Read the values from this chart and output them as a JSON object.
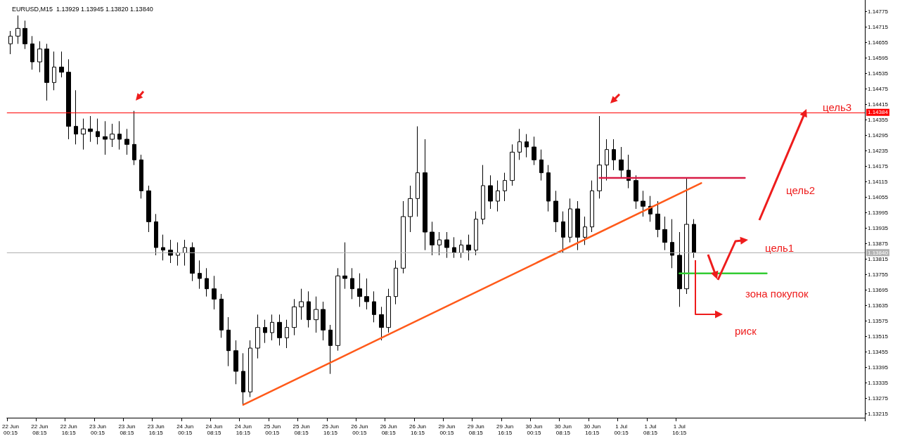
{
  "chart_data": {
    "type": "candlestick",
    "title": "EURUSD,M15  1.13929 1.13945 1.13820 1.13840",
    "color": "#000000",
    "grid": false,
    "marker": "none",
    "categories": [
      "22 Jun 00:15",
      null,
      null,
      null,
      "22 Jun 08:15",
      null,
      null,
      null,
      "22 Jun 16:15",
      null,
      null,
      null,
      "23 Jun 00:15",
      null,
      null,
      null,
      "23 Jun 08:15",
      null,
      null,
      null,
      "23 Jun 16:15",
      null,
      null,
      null,
      "24 Jun 00:15",
      null,
      null,
      null,
      "24 Jun 08:15",
      null,
      null,
      null,
      "24 Jun 16:15",
      null,
      null,
      null,
      "25 Jun 00:15",
      null,
      null,
      null,
      "25 Jun 08:15",
      null,
      null,
      null,
      "25 Jun 16:15",
      null,
      null,
      null,
      "26 Jun 00:15",
      null,
      null,
      null,
      "26 Jun 08:15",
      null,
      null,
      null,
      "26 Jun 16:15",
      null,
      null,
      null,
      "29 Jun 00:15",
      null,
      null,
      null,
      "29 Jun 08:15",
      null,
      null,
      null,
      "29 Jun 16:15",
      null,
      null,
      null,
      "30 Jun 00:15",
      null,
      null,
      null,
      "30 Jun 08:15",
      null,
      null,
      null,
      "30 Jun 16:15",
      null,
      null,
      null,
      "1 Jul 00:15",
      null,
      null,
      null,
      "1 Jul 08:15",
      null,
      null,
      null,
      "1 Jul 16:15",
      null,
      null,
      null,
      null,
      null,
      null,
      null,
      null,
      null,
      null,
      null,
      null,
      null,
      null,
      null,
      null,
      null,
      null,
      null,
      null,
      null,
      null,
      null,
      null,
      null
    ],
    "ohlc": [
      [
        1.1465,
        1.147,
        1.1461,
        1.1468
      ],
      [
        1.1468,
        1.1476,
        1.1465,
        1.1471
      ],
      [
        1.1471,
        1.1474,
        1.1463,
        1.1465
      ],
      [
        1.1465,
        1.1468,
        1.1455,
        1.1458
      ],
      [
        1.1458,
        1.1466,
        1.1454,
        1.1463
      ],
      [
        1.1463,
        1.1465,
        1.1443,
        1.145
      ],
      [
        1.145,
        1.1462,
        1.1447,
        1.1456
      ],
      [
        1.1456,
        1.1462,
        1.1452,
        1.1454
      ],
      [
        1.1454,
        1.1459,
        1.1428,
        1.1433
      ],
      [
        1.1433,
        1.1447,
        1.1426,
        1.143
      ],
      [
        1.143,
        1.1436,
        1.1424,
        1.1432
      ],
      [
        1.1432,
        1.1437,
        1.1427,
        1.1431
      ],
      [
        1.1431,
        1.1436,
        1.1426,
        1.1429
      ],
      [
        1.1429,
        1.1435,
        1.1422,
        1.1428
      ],
      [
        1.1428,
        1.1434,
        1.1425,
        1.143
      ],
      [
        1.143,
        1.1435,
        1.1424,
        1.1428
      ],
      [
        1.1428,
        1.1432,
        1.1422,
        1.1426
      ],
      [
        1.1426,
        1.1439,
        1.1418,
        1.142
      ],
      [
        1.142,
        1.1422,
        1.1405,
        1.1408
      ],
      [
        1.1408,
        1.141,
        1.1392,
        1.1396
      ],
      [
        1.1396,
        1.1399,
        1.1383,
        1.1386
      ],
      [
        1.1386,
        1.1391,
        1.1381,
        1.1385
      ],
      [
        1.1385,
        1.1389,
        1.138,
        1.1383
      ],
      [
        1.1383,
        1.1388,
        1.1379,
        1.1384
      ],
      [
        1.1384,
        1.1389,
        1.1379,
        1.1386
      ],
      [
        1.1386,
        1.1388,
        1.1373,
        1.1376
      ],
      [
        1.1376,
        1.1381,
        1.137,
        1.1374
      ],
      [
        1.1374,
        1.1378,
        1.1367,
        1.137
      ],
      [
        1.137,
        1.1375,
        1.1362,
        1.1366
      ],
      [
        1.1366,
        1.1368,
        1.1351,
        1.1354
      ],
      [
        1.1354,
        1.1359,
        1.134,
        1.1346
      ],
      [
        1.1346,
        1.135,
        1.1333,
        1.1338
      ],
      [
        1.1338,
        1.1345,
        1.1325,
        1.133
      ],
      [
        1.133,
        1.135,
        1.1328,
        1.1347
      ],
      [
        1.1347,
        1.136,
        1.1343,
        1.1355
      ],
      [
        1.1355,
        1.1358,
        1.1349,
        1.1353
      ],
      [
        1.1353,
        1.136,
        1.135,
        1.1357
      ],
      [
        1.1357,
        1.136,
        1.1348,
        1.1351
      ],
      [
        1.1351,
        1.1358,
        1.1347,
        1.1355
      ],
      [
        1.1355,
        1.1366,
        1.1352,
        1.1363
      ],
      [
        1.1363,
        1.137,
        1.1358,
        1.1365
      ],
      [
        1.1365,
        1.1369,
        1.1355,
        1.1358
      ],
      [
        1.1358,
        1.1367,
        1.1353,
        1.1362
      ],
      [
        1.1362,
        1.1365,
        1.135,
        1.1354
      ],
      [
        1.1354,
        1.1356,
        1.1337,
        1.1348
      ],
      [
        1.1348,
        1.1378,
        1.1346,
        1.1375
      ],
      [
        1.1375,
        1.1388,
        1.137,
        1.1374
      ],
      [
        1.1374,
        1.1378,
        1.1366,
        1.137
      ],
      [
        1.137,
        1.1376,
        1.1363,
        1.1367
      ],
      [
        1.1367,
        1.1374,
        1.1362,
        1.1365
      ],
      [
        1.1365,
        1.1369,
        1.1357,
        1.136
      ],
      [
        1.136,
        1.1363,
        1.135,
        1.1355
      ],
      [
        1.1355,
        1.137,
        1.1353,
        1.1367
      ],
      [
        1.1367,
        1.1381,
        1.1364,
        1.1378
      ],
      [
        1.1378,
        1.1404,
        1.1376,
        1.1398
      ],
      [
        1.1398,
        1.141,
        1.1392,
        1.1405
      ],
      [
        1.1405,
        1.1433,
        1.1398,
        1.1415
      ],
      [
        1.1415,
        1.1428,
        1.1385,
        1.1392
      ],
      [
        1.1392,
        1.1396,
        1.1383,
        1.1387
      ],
      [
        1.1387,
        1.1392,
        1.1383,
        1.1389
      ],
      [
        1.1389,
        1.1392,
        1.1382,
        1.1386
      ],
      [
        1.1386,
        1.139,
        1.1382,
        1.1384
      ],
      [
        1.1384,
        1.1389,
        1.1382,
        1.1387
      ],
      [
        1.1387,
        1.1391,
        1.1381,
        1.1385
      ],
      [
        1.1385,
        1.14,
        1.1383,
        1.1397
      ],
      [
        1.1397,
        1.1418,
        1.1395,
        1.141
      ],
      [
        1.141,
        1.1414,
        1.1401,
        1.1404
      ],
      [
        1.1404,
        1.1412,
        1.14,
        1.1408
      ],
      [
        1.1408,
        1.1415,
        1.1404,
        1.1412
      ],
      [
        1.1412,
        1.1426,
        1.141,
        1.1423
      ],
      [
        1.1423,
        1.1432,
        1.142,
        1.1427
      ],
      [
        1.1427,
        1.143,
        1.1421,
        1.1425
      ],
      [
        1.1425,
        1.1429,
        1.1418,
        1.142
      ],
      [
        1.142,
        1.1424,
        1.1412,
        1.1415
      ],
      [
        1.1415,
        1.1418,
        1.14,
        1.1404
      ],
      [
        1.1404,
        1.1408,
        1.1392,
        1.1396
      ],
      [
        1.1396,
        1.14,
        1.1384,
        1.139
      ],
      [
        1.139,
        1.1405,
        1.1388,
        1.1401
      ],
      [
        1.1401,
        1.1404,
        1.1385,
        1.139
      ],
      [
        1.139,
        1.1398,
        1.1387,
        1.1394
      ],
      [
        1.1394,
        1.1412,
        1.1392,
        1.1408
      ],
      [
        1.1408,
        1.1437,
        1.1405,
        1.1418
      ],
      [
        1.1418,
        1.1428,
        1.1412,
        1.1424
      ],
      [
        1.1424,
        1.1428,
        1.1416,
        1.142
      ],
      [
        1.142,
        1.1425,
        1.1413,
        1.1416
      ],
      [
        1.1416,
        1.1422,
        1.1409,
        1.1412
      ],
      [
        1.1412,
        1.1414,
        1.1401,
        1.1404
      ],
      [
        1.1404,
        1.1408,
        1.1398,
        1.1402
      ],
      [
        1.1402,
        1.1406,
        1.1396,
        1.1399
      ],
      [
        1.1399,
        1.1404,
        1.139,
        1.1393
      ],
      [
        1.1393,
        1.1398,
        1.1385,
        1.1388
      ],
      [
        1.1388,
        1.1397,
        1.1378,
        1.1383
      ],
      [
        1.1383,
        1.1392,
        1.1363,
        1.137
      ],
      [
        1.137,
        1.1413,
        1.1368,
        1.1395
      ],
      [
        1.1395,
        1.1397,
        1.1382,
        1.1384
      ],
      null,
      null,
      null,
      null,
      null,
      null,
      null,
      null,
      null,
      null,
      null,
      null,
      null,
      null,
      null,
      null,
      null,
      null,
      null,
      null,
      null,
      null,
      null
    ],
    "series": [
      {
        "type": "line",
        "color": "#ff5a1a",
        "values": [
          null,
          null,
          null,
          null,
          null,
          null,
          null,
          null,
          null,
          null,
          null,
          null,
          null,
          null,
          null,
          null,
          null,
          null,
          null,
          null,
          null,
          null,
          null,
          null,
          null,
          null,
          null,
          null,
          null,
          null,
          null,
          null,
          1.1325,
          null,
          null,
          null,
          null,
          null,
          null,
          null,
          null,
          null,
          null,
          null,
          null,
          null,
          null,
          null,
          null,
          null,
          null,
          null,
          null,
          null,
          null,
          null,
          null,
          null,
          null,
          null,
          null,
          null,
          null,
          null,
          null,
          null,
          null,
          null,
          null,
          null,
          null,
          null,
          null,
          null,
          null,
          null,
          null,
          null,
          null,
          null,
          null,
          null,
          null,
          null,
          null,
          null,
          null,
          null,
          null,
          null,
          null,
          null,
          null,
          null,
          null,
          1.1411,
          null,
          null,
          null,
          null,
          null,
          null,
          null,
          null,
          null,
          null,
          null,
          null,
          null,
          null,
          null,
          null,
          null,
          null,
          null,
          null,
          null,
          null
        ]
      },
      {
        "type": "line",
        "color": "#d81b45",
        "values": [
          null,
          null,
          null,
          null,
          null,
          null,
          null,
          null,
          null,
          null,
          null,
          null,
          null,
          null,
          null,
          null,
          null,
          null,
          null,
          null,
          null,
          null,
          null,
          null,
          null,
          null,
          null,
          null,
          null,
          null,
          null,
          null,
          null,
          null,
          null,
          null,
          null,
          null,
          null,
          null,
          null,
          null,
          null,
          null,
          null,
          null,
          null,
          null,
          null,
          null,
          null,
          null,
          null,
          null,
          null,
          null,
          null,
          null,
          null,
          null,
          null,
          null,
          null,
          null,
          null,
          null,
          null,
          null,
          null,
          null,
          null,
          null,
          null,
          null,
          null,
          null,
          null,
          null,
          null,
          null,
          null,
          1.1413,
          null,
          null,
          null,
          null,
          null,
          null,
          null,
          null,
          null,
          null,
          null,
          null,
          null,
          null,
          null,
          null,
          null,
          null,
          null,
          1.1413,
          null,
          null,
          null,
          null,
          null,
          null,
          null,
          null,
          null,
          null,
          null,
          null,
          null,
          null,
          null,
          null
        ]
      },
      {
        "type": "line",
        "color": "#33cc33",
        "values": [
          null,
          null,
          null,
          null,
          null,
          null,
          null,
          null,
          null,
          null,
          null,
          null,
          null,
          null,
          null,
          null,
          null,
          null,
          null,
          null,
          null,
          null,
          null,
          null,
          null,
          null,
          null,
          null,
          null,
          null,
          null,
          null,
          null,
          null,
          null,
          null,
          null,
          null,
          null,
          null,
          null,
          null,
          null,
          null,
          null,
          null,
          null,
          null,
          null,
          null,
          null,
          null,
          null,
          null,
          null,
          null,
          null,
          null,
          null,
          null,
          null,
          null,
          null,
          null,
          null,
          null,
          null,
          null,
          null,
          null,
          null,
          null,
          null,
          null,
          null,
          null,
          null,
          null,
          null,
          null,
          null,
          null,
          null,
          null,
          null,
          null,
          null,
          null,
          null,
          null,
          null,
          null,
          1.1376,
          null,
          null,
          null,
          null,
          null,
          null,
          null,
          null,
          null,
          null,
          null,
          1.1376,
          null,
          null,
          null,
          null,
          null,
          null,
          null,
          null,
          null,
          null,
          null,
          null,
          null
        ]
      }
    ],
    "ylim": [
      1.132,
      1.1482
    ],
    "yticks": [
      1.13215,
      1.13275,
      1.13335,
      1.13395,
      1.13455,
      1.13515,
      1.13575,
      1.13635,
      1.13695,
      1.13755,
      1.13815,
      1.13875,
      1.13935,
      1.13995,
      1.14055,
      1.14115,
      1.14175,
      1.14235,
      1.14295,
      1.14355,
      1.14415,
      1.14475,
      1.14535,
      1.14595,
      1.14655,
      1.14715,
      1.14775
    ],
    "ref_lines": [
      {
        "axis": "y",
        "value": 1.14384,
        "label": "1.14384",
        "color": "#ff0000"
      },
      {
        "axis": "y",
        "value": 1.1384,
        "label": "1.13840",
        "color": "#b0b0b0"
      }
    ],
    "annotations": [
      "цель3",
      "цель2",
      "цель1",
      "зона покупок",
      "риск"
    ]
  }
}
